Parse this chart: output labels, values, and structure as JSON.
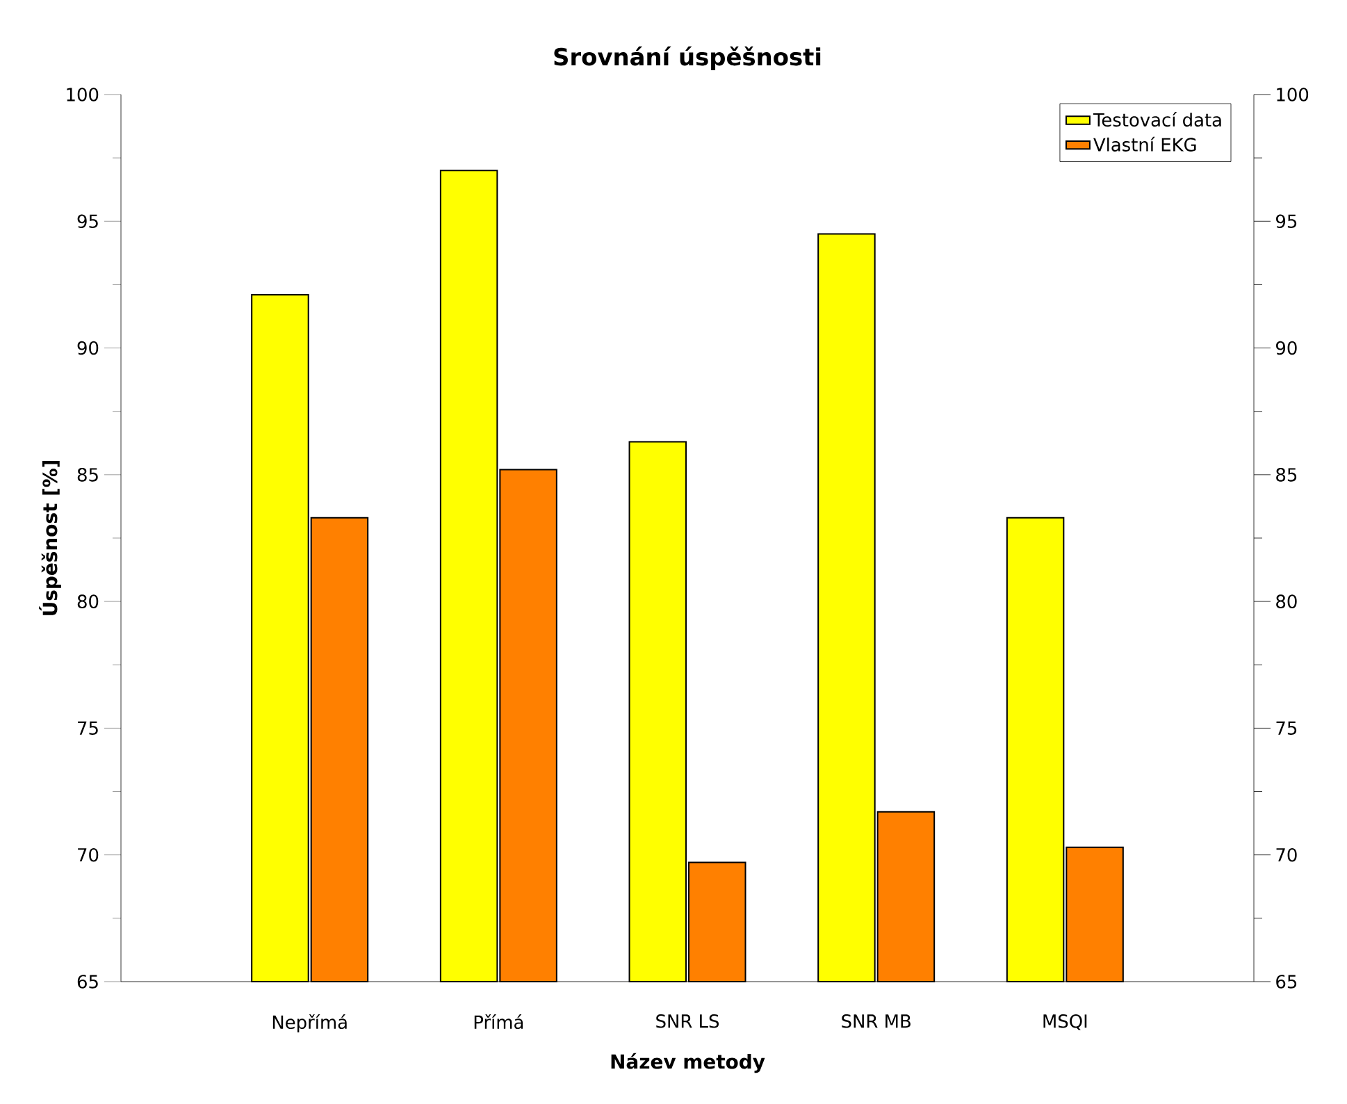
{
  "chart_data": {
    "type": "bar",
    "title": "Srovnání úspěšnosti",
    "xlabel": "Název metody",
    "ylabel": "Úspěšnost [%]",
    "categories": [
      "Nepřímá",
      "Přímá",
      "SNR LS",
      "SNR MB",
      "MSQI"
    ],
    "series": [
      {
        "name": "Testovací data",
        "color": "#ffff00",
        "values": [
          92.1,
          97.0,
          86.3,
          94.5,
          83.3
        ]
      },
      {
        "name": "Vlastní EKG",
        "color": "#ff8000",
        "values": [
          83.3,
          85.2,
          69.7,
          71.7,
          70.3
        ]
      }
    ],
    "ylim": [
      65,
      100
    ],
    "yticks": [
      65,
      70,
      75,
      80,
      85,
      90,
      95,
      100
    ],
    "y2lim": [
      65,
      100
    ],
    "y2ticks": [
      65,
      70,
      75,
      80,
      85,
      90,
      95,
      100
    ],
    "legend": "top right",
    "grid": false
  }
}
